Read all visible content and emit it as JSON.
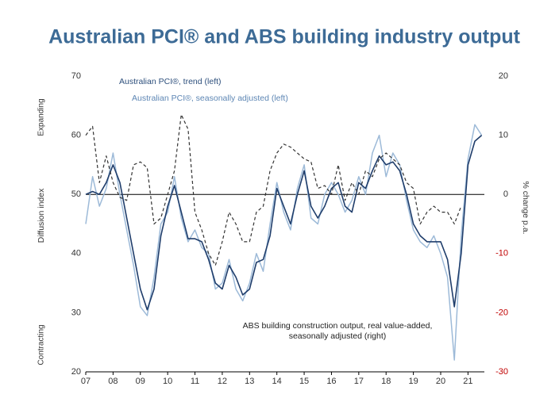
{
  "chart_data": {
    "type": "line",
    "title": "Australian PCI® and ABS building industry output",
    "y_annotations": {
      "top": "Expanding",
      "middle": "Diffusion index",
      "bottom": "Contracting"
    },
    "y2_label": "% change p.a.",
    "x": [
      2007,
      2007.25,
      2007.5,
      2007.75,
      2008,
      2008.25,
      2008.5,
      2008.75,
      2009,
      2009.25,
      2009.5,
      2009.75,
      2010,
      2010.25,
      2010.5,
      2010.75,
      2011,
      2011.25,
      2011.5,
      2011.75,
      2012,
      2012.25,
      2012.5,
      2012.75,
      2013,
      2013.25,
      2013.5,
      2013.75,
      2014,
      2014.25,
      2014.5,
      2014.75,
      2015,
      2015.25,
      2015.5,
      2015.75,
      2016,
      2016.25,
      2016.5,
      2016.75,
      2017,
      2017.25,
      2017.5,
      2017.75,
      2018,
      2018.25,
      2018.5,
      2018.75,
      2019,
      2019.25,
      2019.5,
      2019.75,
      2020,
      2020.25,
      2020.5,
      2020.75,
      2021,
      2021.25,
      2021.5
    ],
    "series": [
      {
        "name": "Australian PCI®, seasonally adjusted (left)",
        "color": "#9dbad8",
        "dash": false,
        "width": 1.5,
        "values": [
          45,
          53,
          48,
          51,
          57,
          50,
          44,
          38,
          31,
          29.5,
          36,
          45,
          47,
          53,
          46,
          42,
          44,
          41,
          40,
          34,
          35,
          39,
          34,
          32,
          35,
          40,
          37,
          45,
          52,
          47,
          44,
          51,
          55,
          46,
          45,
          50,
          52,
          50,
          47,
          49,
          53,
          50,
          57,
          60,
          53,
          57,
          55,
          49,
          44,
          42,
          41,
          43,
          40,
          36,
          22,
          43,
          56,
          61.8,
          60
        ]
      },
      {
        "name": "Australian PCI®, trend (left)",
        "color": "#1f3d6b",
        "dash": false,
        "width": 1.6,
        "values": [
          50,
          50.5,
          50,
          52,
          55,
          52,
          46,
          40,
          34,
          30.5,
          34,
          43,
          48,
          51.5,
          47,
          42.5,
          42.5,
          42,
          39,
          35,
          34,
          38,
          36,
          33,
          34,
          38.5,
          39,
          43,
          51,
          48,
          45,
          50,
          54,
          48,
          46,
          48,
          51,
          52,
          48,
          47,
          52,
          51,
          54,
          56.5,
          55,
          55.5,
          54,
          50,
          45,
          43,
          42,
          42,
          42,
          39,
          31,
          40,
          55,
          59,
          60
        ]
      },
      {
        "name": "ABS building construction output, real value-added, seasonally adjusted (right)",
        "color": "#333333",
        "dash": true,
        "width": 1.2,
        "axis": "y2",
        "values": [
          10,
          11.5,
          2,
          6.5,
          2,
          -0.5,
          -1,
          5,
          5.5,
          4.5,
          -5,
          -4,
          0,
          4,
          13.5,
          11,
          -3,
          -6,
          -10,
          -12,
          -8,
          -3,
          -5,
          -8,
          -8,
          -3,
          -2,
          4,
          7,
          8.5,
          8,
          7,
          6,
          5.5,
          1,
          1.5,
          0,
          5,
          -1,
          2,
          0,
          4,
          3,
          6,
          7,
          6,
          5,
          2,
          1,
          -5,
          -3,
          -2,
          -3,
          -3,
          -5,
          -2,
          null,
          null,
          null
        ]
      }
    ],
    "xlim": [
      2007,
      2021.6
    ],
    "xticks": [
      {
        "value": 2007,
        "label": "07"
      },
      {
        "value": 2008,
        "label": "08"
      },
      {
        "value": 2009,
        "label": "09"
      },
      {
        "value": 2010,
        "label": "10"
      },
      {
        "value": 2011,
        "label": "11"
      },
      {
        "value": 2012,
        "label": "12"
      },
      {
        "value": 2013,
        "label": "13"
      },
      {
        "value": 2014,
        "label": "14"
      },
      {
        "value": 2015,
        "label": "15"
      },
      {
        "value": 2016,
        "label": "16"
      },
      {
        "value": 2017,
        "label": "17"
      },
      {
        "value": 2018,
        "label": "18"
      },
      {
        "value": 2019,
        "label": "19"
      },
      {
        "value": 2020,
        "label": "20"
      },
      {
        "value": 2021,
        "label": "21"
      }
    ],
    "ylim": [
      20,
      70
    ],
    "yticks": [
      20,
      30,
      40,
      50,
      60,
      70
    ],
    "y2lim": [
      -30,
      20
    ],
    "y2ticks": [
      -30,
      -20,
      -10,
      0,
      10,
      20
    ],
    "negative_y2tick_color": "#c00000",
    "grid": false
  }
}
